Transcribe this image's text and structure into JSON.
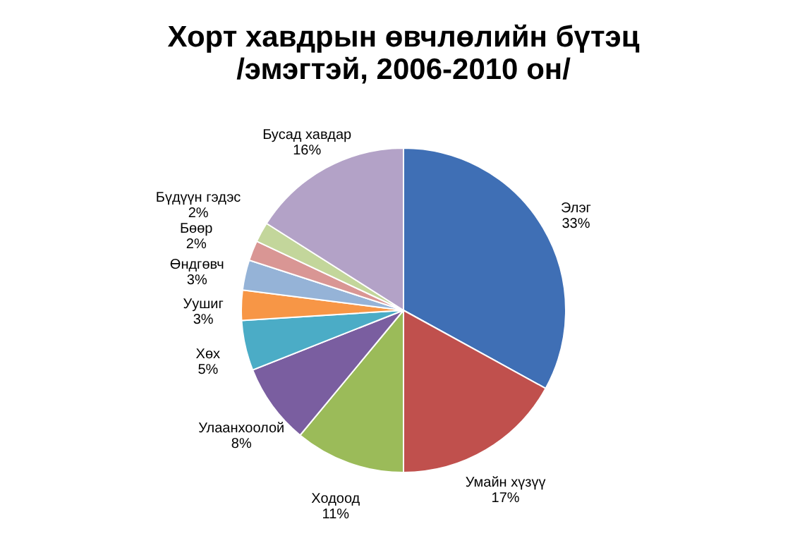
{
  "chart_data": {
    "type": "pie",
    "title": "Хорт хавдрын өвчлөлийн бүтэц\n/эмэгтэй, 2006-2010  он/",
    "categories": [
      "Элэг",
      "Умайн хүзүү",
      "Ходоод",
      "Улаанхоолой",
      "Хөх",
      "Уушиг",
      "Өндгөвч",
      "Бөөр",
      "Бүдүүн гэдэс",
      "Бусад хавдар"
    ],
    "values": [
      33,
      17,
      11,
      8,
      5,
      3,
      3,
      2,
      2,
      16
    ],
    "value_labels": [
      "33%",
      "17%",
      "11%",
      "8%",
      "5%",
      "3%",
      "3%",
      "2%",
      "2%",
      "16%"
    ],
    "colors": [
      "#3f6fb5",
      "#c0504d",
      "#9bbb59",
      "#7a5ea0",
      "#4bacc6",
      "#f79646",
      "#95b3d7",
      "#d99694",
      "#c3d69b",
      "#b3a2c7"
    ]
  }
}
